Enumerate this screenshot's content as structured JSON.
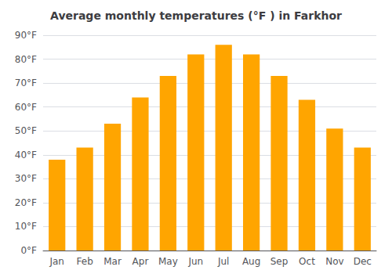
{
  "chart_data": {
    "type": "bar",
    "title": "Average monthly temperatures (°F ) in Farkhor",
    "categories": [
      "Jan",
      "Feb",
      "Mar",
      "Apr",
      "May",
      "Jun",
      "Jul",
      "Aug",
      "Sep",
      "Oct",
      "Nov",
      "Dec"
    ],
    "values": [
      38,
      43,
      53,
      64,
      73,
      82,
      86,
      82,
      73,
      63,
      51,
      43
    ],
    "color": "#FFA500",
    "ylim": [
      0,
      90
    ],
    "yticks": [
      {
        "value": 0,
        "label": "0°F"
      },
      {
        "value": 10,
        "label": "10°F"
      },
      {
        "value": 20,
        "label": "20°F"
      },
      {
        "value": 30,
        "label": "30°F"
      },
      {
        "value": 40,
        "label": "40°F"
      },
      {
        "value": 50,
        "label": "50°F"
      },
      {
        "value": 60,
        "label": "60°F"
      },
      {
        "value": 70,
        "label": "70°F"
      },
      {
        "value": 80,
        "label": "80°F"
      },
      {
        "value": 90,
        "label": "90°F"
      }
    ],
    "grid": true
  }
}
